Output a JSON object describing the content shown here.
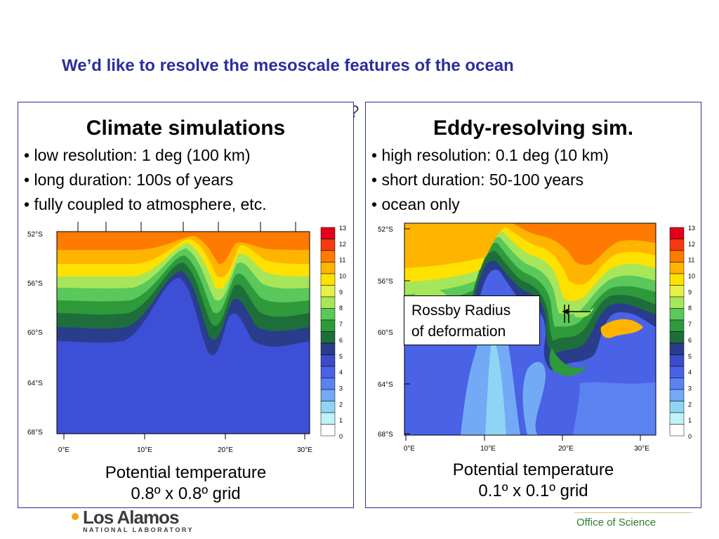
{
  "slide": {
    "title": "We’d like to resolve the mesoscale features of the ocean",
    "stray_mark": "?"
  },
  "left_panel": {
    "title": "Climate simulations",
    "bullets": [
      "low resolution: 1 deg (100 km)",
      "long duration: 100s of years",
      "fully coupled to atmosphere, etc."
    ],
    "caption_line1": "Potential temperature",
    "caption_line2": "0.8º x 0.8º grid"
  },
  "right_panel": {
    "title": "Eddy-resolving sim.",
    "bullets": [
      "high resolution: 0.1 deg (10 km)",
      "short duration: 50-100 years",
      "ocean only"
    ],
    "caption_line1": "Potential temperature",
    "caption_line2": "0.1º x 0.1º grid",
    "annotation_line1": "Rossby Radius",
    "annotation_line2": "of deformation"
  },
  "map_axes": {
    "lat_labels": [
      "52°S",
      "56°S",
      "60°S",
      "64°S",
      "68°S"
    ],
    "lon_labels": [
      "0°E",
      "10°E",
      "20°E",
      "30°E"
    ]
  },
  "colorbar": {
    "labels": [
      "13",
      "12",
      "11",
      "10",
      "9",
      "8",
      "7",
      "6",
      "5",
      "4",
      "3",
      "2",
      "1",
      "0"
    ],
    "colors": [
      "#e3001a",
      "#f53a10",
      "#ff7a00",
      "#ffb400",
      "#ffe100",
      "#e6f04a",
      "#a6e65a",
      "#5ac85a",
      "#2e9a3a",
      "#1e6e3c",
      "#2a3c8c",
      "#3a4ccc",
      "#4a62e6",
      "#5a82f0",
      "#72aaf6",
      "#8fd4f4",
      "#c0f2f8",
      "#ffffff"
    ]
  },
  "footer": {
    "lab_name": "Los Alamos",
    "lab_sub": "NATIONAL LABORATORY",
    "office": "Office of Science"
  }
}
